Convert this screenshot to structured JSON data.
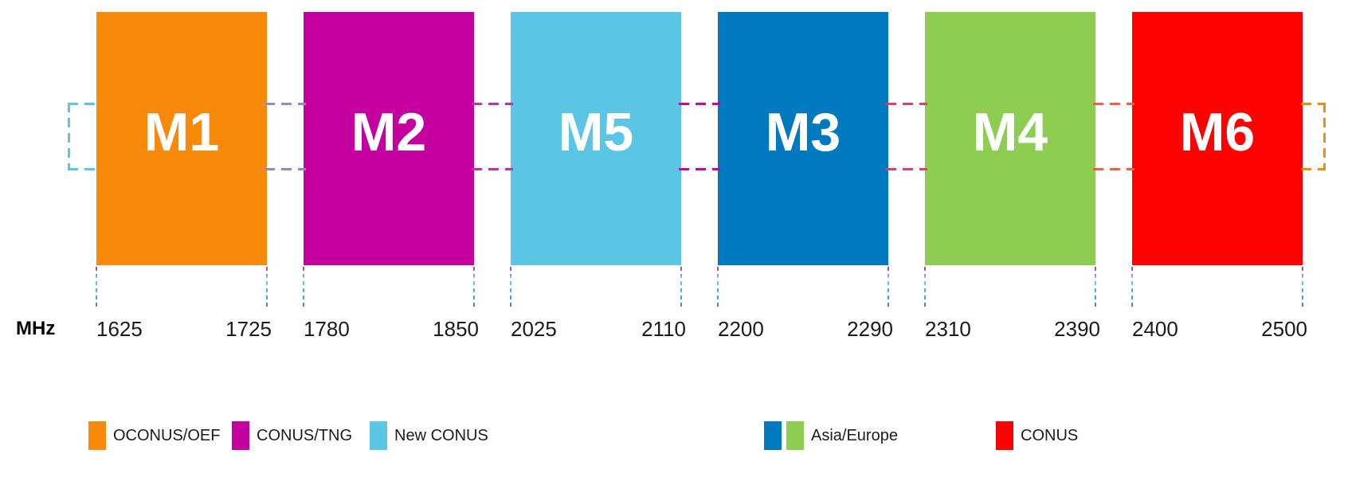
{
  "unit_label": "MHz",
  "chart_data": {
    "type": "bar",
    "title": "",
    "xlabel": "MHz",
    "unit_label": "MHz",
    "bands": [
      {
        "id": "M1",
        "label": "M1",
        "freq_low": "1625",
        "freq_high": "1725",
        "color": "#f8890b",
        "legend_group": "OCONUS/OEF"
      },
      {
        "id": "M2",
        "label": "M2",
        "freq_low": "1780",
        "freq_high": "1850",
        "color": "#c4019e",
        "legend_group": "CONUS/TNG"
      },
      {
        "id": "M5",
        "label": "M5",
        "freq_low": "2025",
        "freq_high": "2110",
        "color": "#5bc6e3",
        "legend_group": "New CONUS"
      },
      {
        "id": "M3",
        "label": "M3",
        "freq_low": "2200",
        "freq_high": "2290",
        "color": "#0079c1",
        "legend_group": "Asia/Europe"
      },
      {
        "id": "M4",
        "label": "M4",
        "freq_low": "2310",
        "freq_high": "2390",
        "color": "#8dce52",
        "legend_group": "Asia/Europe"
      },
      {
        "id": "M6",
        "label": "M6",
        "freq_low": "2400",
        "freq_high": "2500",
        "color": "#fe0202",
        "legend_group": "CONUS"
      }
    ],
    "connector_colors_between": [
      "#918bc4",
      "#c72fa6",
      "#cb00a5",
      "#ee3a63",
      "#fa5c48"
    ],
    "left_bracket_color": "#5bc6e3",
    "right_bracket_color": "#fa8b00",
    "legend": [
      {
        "label": "OCONUS/OEF",
        "colors": [
          "#f8890b"
        ]
      },
      {
        "label": "CONUS/TNG",
        "colors": [
          "#c4019e"
        ]
      },
      {
        "label": "New CONUS",
        "colors": [
          "#5bc6e3"
        ]
      },
      {
        "label": "Asia/Europe",
        "colors": [
          "#0079c1",
          "#8dce52"
        ]
      },
      {
        "label": "CONUS",
        "colors": [
          "#fe0202"
        ]
      }
    ]
  }
}
